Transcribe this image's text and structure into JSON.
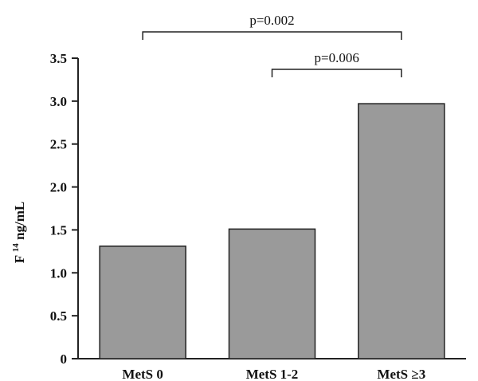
{
  "chart_data": {
    "type": "bar",
    "categories": [
      "MetS 0",
      "MetS 1-2",
      "MetS ≥3"
    ],
    "values": [
      1.31,
      1.51,
      2.97
    ],
    "ylabel_main": "F ",
    "ylabel_sup": "14",
    "ylabel_unit": " ng/mL",
    "ylim": [
      0,
      3.5
    ],
    "yticks": [
      "0",
      "0.5",
      "1.0",
      "1.5",
      "2.0",
      "2.5",
      "3.0",
      "3.5"
    ],
    "grid": false,
    "bar_color": "#9a9a9a",
    "comparisons": [
      {
        "from": 0,
        "to": 2,
        "label": "p=0.002"
      },
      {
        "from": 1,
        "to": 2,
        "label": "p=0.006"
      }
    ]
  }
}
